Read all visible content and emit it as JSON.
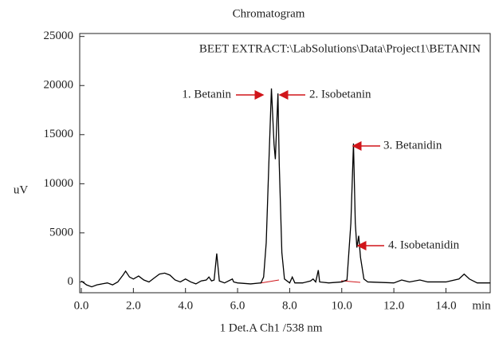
{
  "chart_data": {
    "type": "line",
    "title": "Chromatogram",
    "subtitle": "BEET EXTRACT:\\LabSolutions\\Data\\Project1\\BETANIN",
    "x_label": "1 Det.A Ch1 /538 nm",
    "x_unit": "min",
    "y_label": "uV",
    "annotations": [
      "1. Betanin",
      "2. Isobetanin",
      "3. Betanidin",
      "4. Isobetanidin"
    ],
    "x": [
      0,
      0.2,
      0.4,
      0.6,
      0.8,
      1.0,
      1.2,
      1.4,
      1.6,
      1.7,
      1.85,
      2.0,
      2.2,
      2.4,
      2.6,
      2.8,
      3.0,
      3.2,
      3.4,
      3.6,
      3.8,
      4.0,
      4.2,
      4.4,
      4.6,
      4.8,
      4.9,
      5.0,
      5.1,
      5.2,
      5.3,
      5.5,
      5.8,
      5.85,
      6.0,
      6.5,
      6.9,
      7.0,
      7.1,
      7.2,
      7.3,
      7.4,
      7.45,
      7.55,
      7.6,
      7.7,
      7.8,
      8.0,
      8.1,
      8.2,
      8.5,
      8.8,
      8.9,
      9.0,
      9.1,
      9.15,
      9.5,
      10.0,
      10.2,
      10.35,
      10.45,
      10.52,
      10.58,
      10.65,
      10.72,
      10.85,
      11.0,
      12.0,
      12.3,
      12.6,
      13.0,
      13.3,
      14.0,
      14.5,
      14.7,
      14.9,
      15.2,
      15.7
    ],
    "series": [
      {
        "color": "#000000",
        "values": [
          100,
          -300,
          -500,
          -300,
          -200,
          -100,
          -300,
          0,
          700,
          1100,
          500,
          300,
          600,
          200,
          0,
          400,
          800,
          900,
          700,
          200,
          0,
          300,
          0,
          -200,
          100,
          200,
          500,
          100,
          200,
          2900,
          100,
          -100,
          300,
          0,
          -100,
          -200,
          -100,
          500,
          4000,
          12000,
          19700,
          14000,
          12500,
          19200,
          12000,
          3000,
          300,
          -100,
          500,
          -100,
          -100,
          100,
          300,
          0,
          1200,
          0,
          -100,
          0,
          200,
          6000,
          14100,
          6000,
          3500,
          4700,
          2500,
          300,
          0,
          -100,
          200,
          0,
          200,
          0,
          0,
          300,
          800,
          300,
          -100,
          -100
        ]
      }
    ],
    "xlim": [
      0,
      15.7
    ],
    "ylim": [
      -1100,
      25300
    ],
    "xticks": [
      {
        "value": 0,
        "label": "0.0"
      },
      {
        "value": 2,
        "label": "2.0"
      },
      {
        "value": 4,
        "label": "4.0"
      },
      {
        "value": 6,
        "label": "6.0"
      },
      {
        "value": 8,
        "label": "8.0"
      },
      {
        "value": 10,
        "label": "10.0"
      },
      {
        "value": 12,
        "label": "12.0"
      },
      {
        "value": 14,
        "label": "14.0"
      }
    ],
    "yticks": [
      0,
      5000,
      10000,
      15000,
      20000,
      25000
    ],
    "grid": false
  }
}
